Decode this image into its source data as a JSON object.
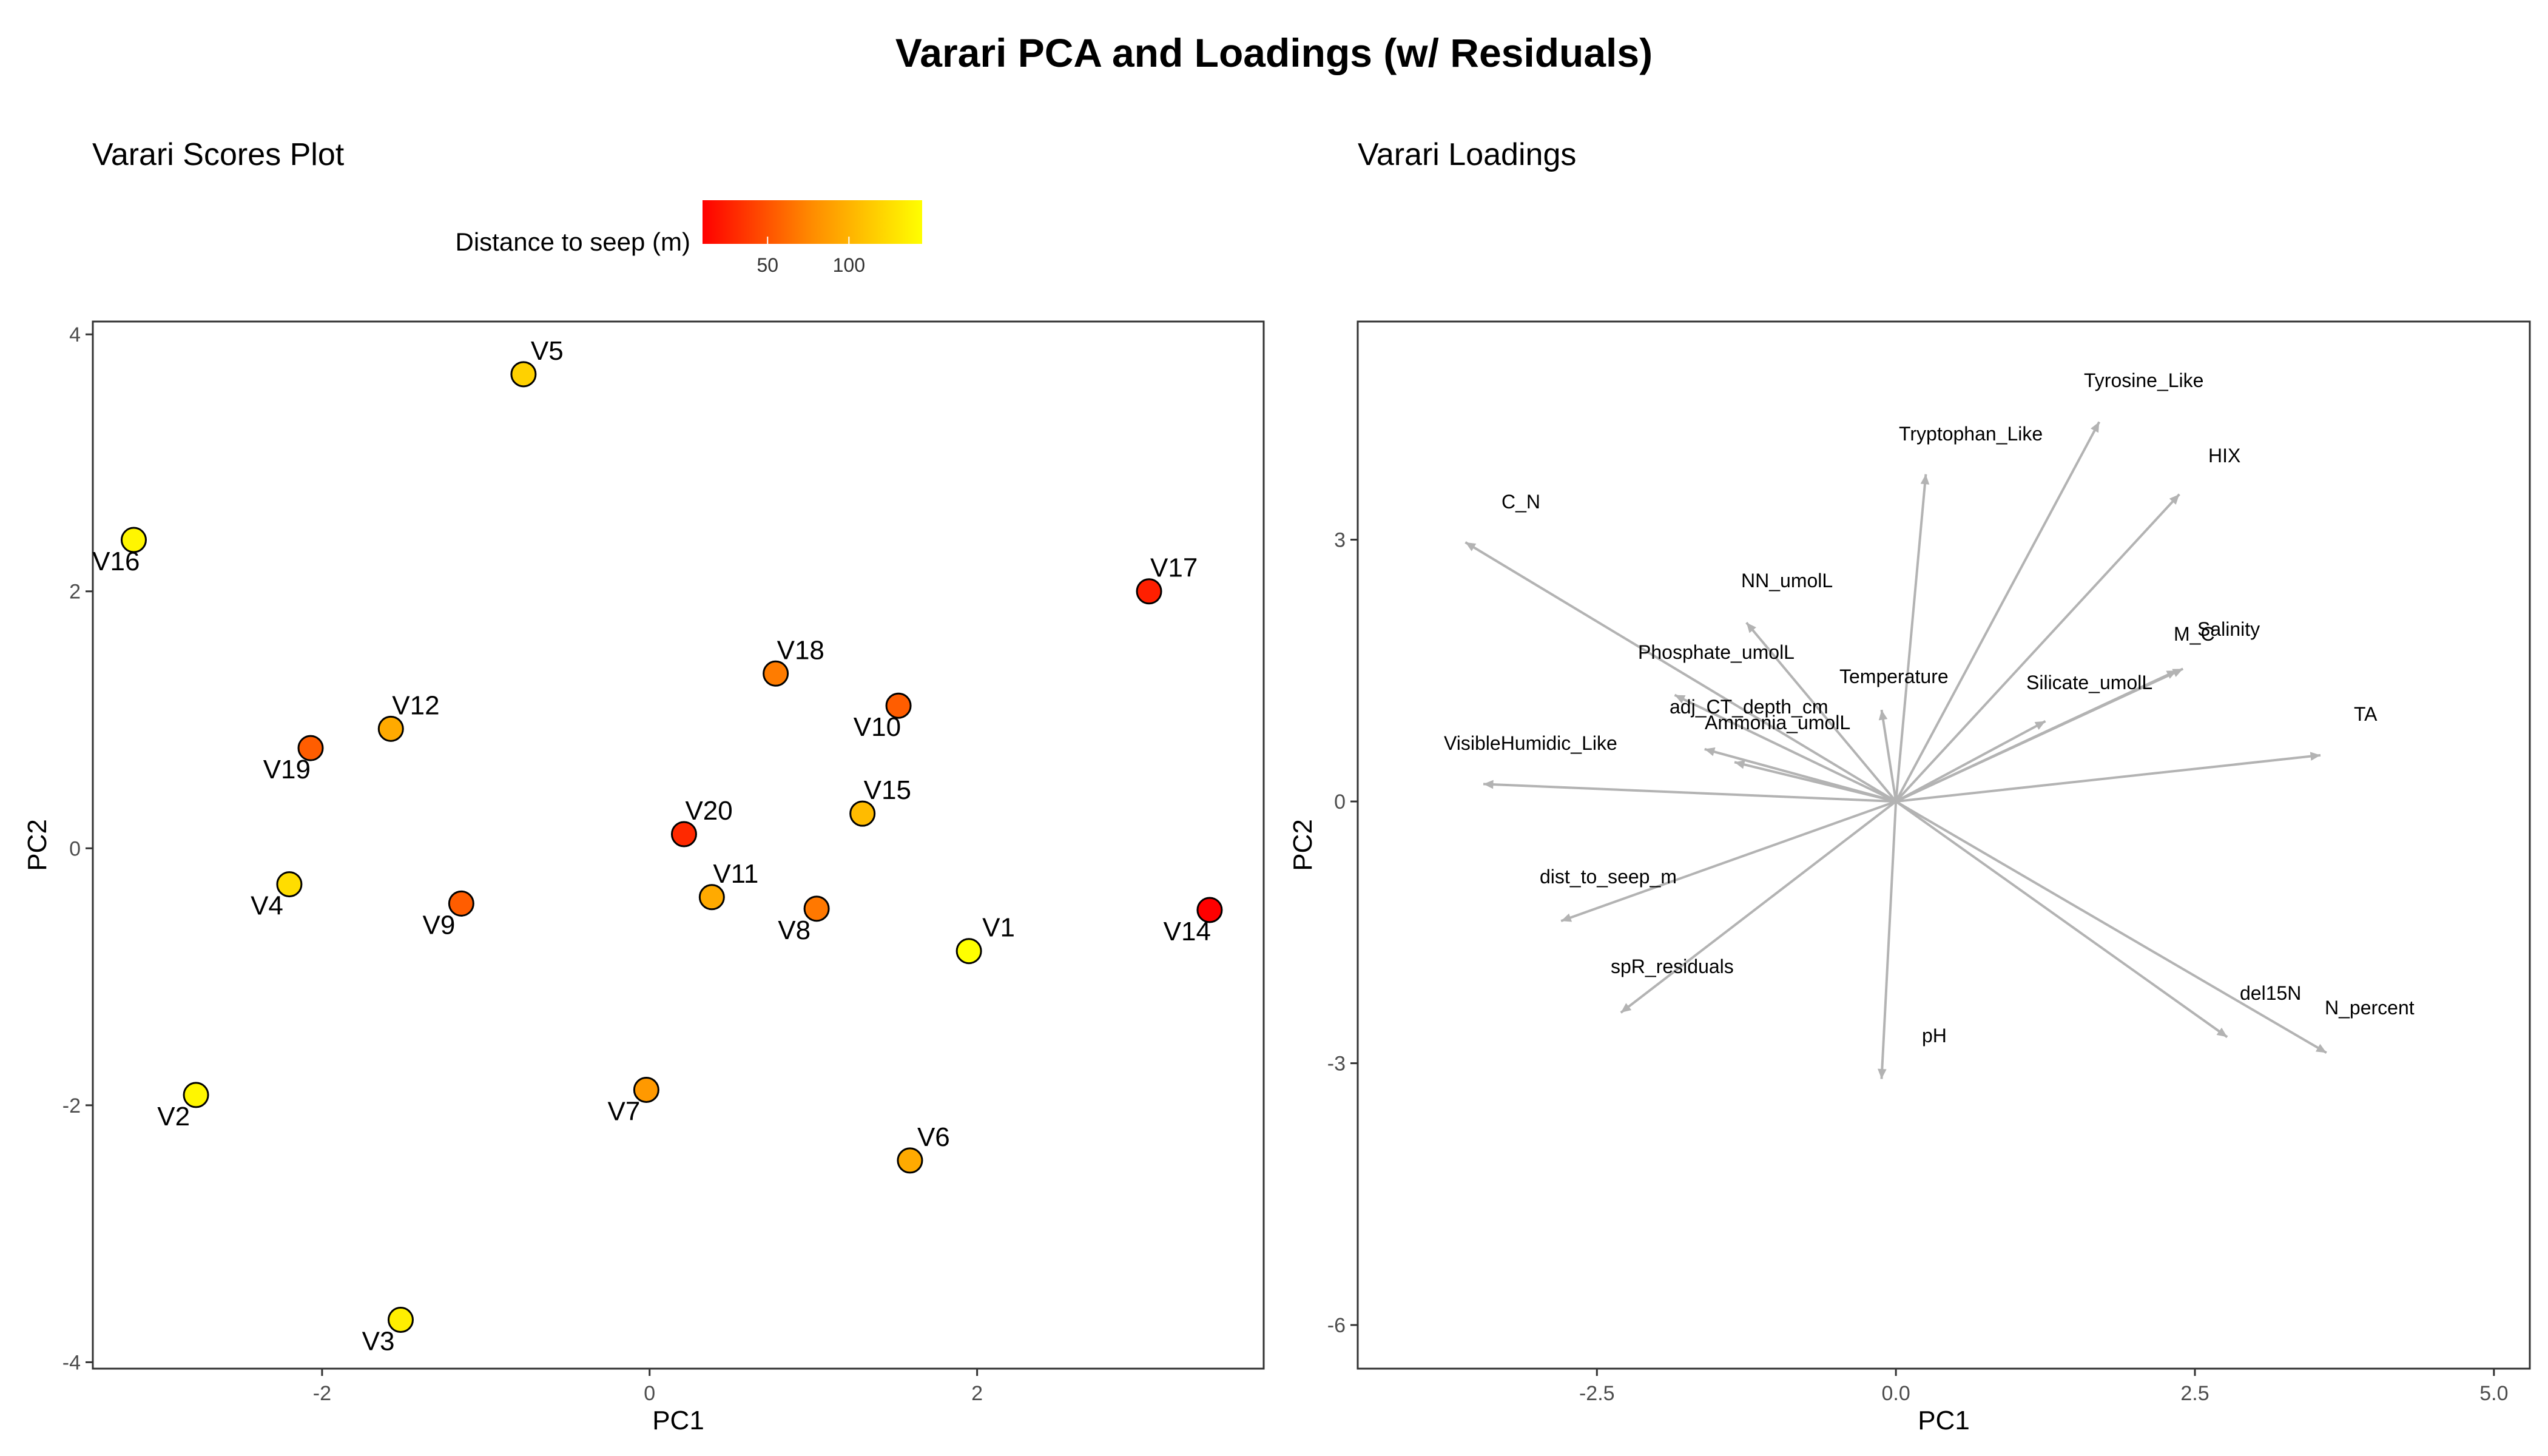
{
  "figure_title": "Varari PCA and Loadings (w/ Residuals)",
  "chart_data": [
    {
      "type": "scatter",
      "title": "Varari Scores Plot",
      "xlabel": "PC1",
      "ylabel": "PC2",
      "xlim": [
        -3.4,
        3.75
      ],
      "ylim": [
        -4.05,
        4.1
      ],
      "xticks": [
        -2,
        0,
        2
      ],
      "yticks": [
        -4,
        -2,
        0,
        2,
        4
      ],
      "grid": false,
      "legend": {
        "title": "Distance to seep (m)",
        "placement": "top",
        "type": "colorbar",
        "range": [
          10,
          145
        ],
        "ticks": [
          50,
          100
        ],
        "colors": [
          "#ff0000",
          "#ff8c00",
          "#ffff00"
        ]
      },
      "points": [
        {
          "label": "V1",
          "x": 1.95,
          "y": -0.8,
          "distance": 145
        },
        {
          "label": "V2",
          "x": -2.77,
          "y": -1.92,
          "distance": 140
        },
        {
          "label": "V3",
          "x": -1.52,
          "y": -3.67,
          "distance": 135
        },
        {
          "label": "V4",
          "x": -2.2,
          "y": -0.28,
          "distance": 125
        },
        {
          "label": "V5",
          "x": -0.77,
          "y": 3.69,
          "distance": 118
        },
        {
          "label": "V6",
          "x": 1.59,
          "y": -2.43,
          "distance": 95
        },
        {
          "label": "V7",
          "x": -0.02,
          "y": -1.88,
          "distance": 85
        },
        {
          "label": "V8",
          "x": 1.02,
          "y": -0.47,
          "distance": 68
        },
        {
          "label": "V9",
          "x": -1.15,
          "y": -0.43,
          "distance": 55
        },
        {
          "label": "V10",
          "x": 1.52,
          "y": 1.11,
          "distance": 55
        },
        {
          "label": "V11",
          "x": 0.38,
          "y": -0.38,
          "distance": 95
        },
        {
          "label": "V12",
          "x": -1.58,
          "y": 0.93,
          "distance": 95
        },
        {
          "label": "V14",
          "x": 3.42,
          "y": -0.48,
          "distance": 10
        },
        {
          "label": "V15",
          "x": 1.3,
          "y": 0.27,
          "distance": 105
        },
        {
          "label": "V16",
          "x": -3.15,
          "y": 2.4,
          "distance": 140
        },
        {
          "label": "V17",
          "x": 3.05,
          "y": 2.0,
          "distance": 25
        },
        {
          "label": "V18",
          "x": 0.77,
          "y": 1.36,
          "distance": 70
        },
        {
          "label": "V19",
          "x": -2.07,
          "y": 0.78,
          "distance": 55
        },
        {
          "label": "V20",
          "x": 0.21,
          "y": 0.11,
          "distance": 30
        }
      ]
    },
    {
      "type": "biplot-loadings",
      "title": "Varari Loadings",
      "xlabel": "PC1",
      "ylabel": "PC2",
      "xlim": [
        -4.5,
        5.3
      ],
      "ylim": [
        -6.5,
        5.5
      ],
      "xticks": [
        -2.5,
        0.0,
        2.5,
        5.0
      ],
      "xtick_labels": [
        "-2.5",
        "0.0",
        "2.5",
        "5.0"
      ],
      "yticks": [
        -6,
        -3,
        0,
        3
      ],
      "grid": false,
      "arrow_color": "#b3b3b3",
      "vectors": [
        {
          "label": "Tyrosine_Like",
          "x": 1.7,
          "y": 4.35
        },
        {
          "label": "Tryptophan_Like",
          "x": 0.25,
          "y": 3.75
        },
        {
          "label": "HIX",
          "x": 2.37,
          "y": 3.52
        },
        {
          "label": "C_N",
          "x": -3.6,
          "y": 2.97
        },
        {
          "label": "NN_umolL",
          "x": -1.25,
          "y": 2.05
        },
        {
          "label": "Phosphate_umolL",
          "x": -1.85,
          "y": 1.22
        },
        {
          "label": "Temperature",
          "x": -0.12,
          "y": 1.05
        },
        {
          "label": "M_C",
          "x": 2.35,
          "y": 1.5
        },
        {
          "label": "Salinity",
          "x": 2.4,
          "y": 1.52
        },
        {
          "label": "Silicate_umolL",
          "x": 1.25,
          "y": 0.92
        },
        {
          "label": "adj_CT_depth_cm",
          "x": -1.6,
          "y": 0.6
        },
        {
          "label": "Ammonia_umolL",
          "x": -1.35,
          "y": 0.45
        },
        {
          "label": "VisibleHumidic_Like",
          "x": -3.45,
          "y": 0.2
        },
        {
          "label": "TA",
          "x": 3.55,
          "y": 0.53
        },
        {
          "label": "dist_to_seep_m",
          "x": -2.8,
          "y": -1.37
        },
        {
          "label": "spR_residuals",
          "x": -2.3,
          "y": -2.42
        },
        {
          "label": "pH",
          "x": -0.12,
          "y": -3.18
        },
        {
          "label": "del15N",
          "x": 2.77,
          "y": -2.7
        },
        {
          "label": "N_percent",
          "x": 3.6,
          "y": -2.88
        }
      ]
    }
  ]
}
